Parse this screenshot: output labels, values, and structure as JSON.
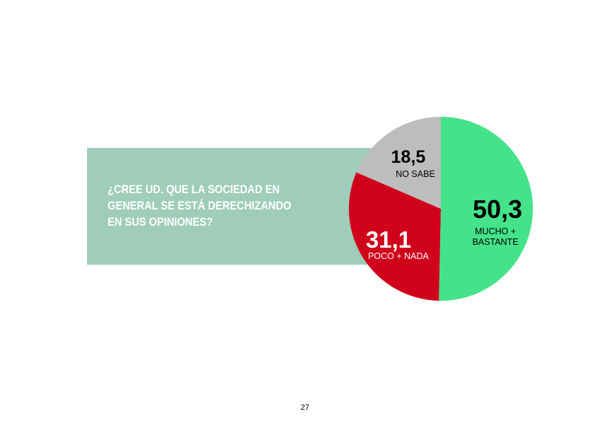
{
  "question": {
    "lines": [
      "¿CREE UD. QUE LA SOCIEDAD EN",
      "GENERAL SE ESTÁ DERECHIZANDO",
      "EN SUS OPINIONES?"
    ]
  },
  "chart_data": {
    "type": "pie",
    "title": "",
    "start_angle_deg": 0,
    "direction": "clockwise",
    "slices": [
      {
        "label_lines": [
          "MUCHO +",
          "BASTANTE"
        ],
        "value": 50.3,
        "value_text": "50,3",
        "color": "#44e38a",
        "value_color": "#000000",
        "label_color": "#000000"
      },
      {
        "label_lines": [
          "POCO + NADA"
        ],
        "value": 31.1,
        "value_text": "31,1",
        "color": "#d0021b",
        "value_color": "#ffffff",
        "label_color": "#ffffff"
      },
      {
        "label_lines": [
          "NO SABE"
        ],
        "value": 18.5,
        "value_text": "18,5",
        "color": "#bdbdbd",
        "value_color": "#000000",
        "label_color": "#000000"
      }
    ]
  },
  "colors": {
    "panel": "#9fcdb9",
    "question_text": "#ffffff"
  },
  "page": {
    "number": "27"
  }
}
